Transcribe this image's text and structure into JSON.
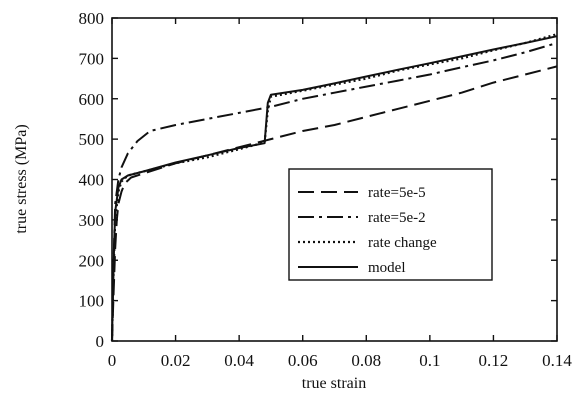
{
  "chart_data": {
    "type": "line",
    "title": "",
    "xlabel": "true strain",
    "ylabel": "true stress (MPa)",
    "xlim": [
      0,
      0.14
    ],
    "ylim": [
      0,
      800
    ],
    "xticks": [
      0,
      0.02,
      0.04,
      0.06,
      0.08,
      0.1,
      0.12,
      0.14
    ],
    "xtick_labels": [
      "0",
      "0.02",
      "0.04",
      "0.06",
      "0.08",
      "0.1",
      "0.12",
      "0.14"
    ],
    "yticks": [
      0,
      100,
      200,
      300,
      400,
      500,
      600,
      700,
      800
    ],
    "ytick_labels": [
      "0",
      "100",
      "200",
      "300",
      "400",
      "500",
      "600",
      "700",
      "800"
    ],
    "grid": false,
    "legend_position": "center-right",
    "series": [
      {
        "name": "rate=5e-5",
        "style": "dashed",
        "color": "#111111",
        "points": [
          [
            0,
            0
          ],
          [
            0.0005,
            120
          ],
          [
            0.001,
            230
          ],
          [
            0.0015,
            300
          ],
          [
            0.002,
            340
          ],
          [
            0.003,
            370
          ],
          [
            0.004,
            390
          ],
          [
            0.006,
            405
          ],
          [
            0.01,
            415
          ],
          [
            0.02,
            440
          ],
          [
            0.03,
            460
          ],
          [
            0.04,
            480
          ],
          [
            0.05,
            500
          ],
          [
            0.06,
            520
          ],
          [
            0.07,
            535
          ],
          [
            0.08,
            555
          ],
          [
            0.09,
            575
          ],
          [
            0.1,
            595
          ],
          [
            0.11,
            615
          ],
          [
            0.12,
            640
          ],
          [
            0.13,
            660
          ],
          [
            0.14,
            680
          ]
        ]
      },
      {
        "name": "rate=5e-2",
        "style": "dash-dot",
        "color": "#111111",
        "points": [
          [
            0,
            0
          ],
          [
            0.0005,
            200
          ],
          [
            0.001,
            340
          ],
          [
            0.002,
            400
          ],
          [
            0.003,
            430
          ],
          [
            0.005,
            465
          ],
          [
            0.008,
            495
          ],
          [
            0.012,
            520
          ],
          [
            0.02,
            535
          ],
          [
            0.03,
            550
          ],
          [
            0.04,
            565
          ],
          [
            0.05,
            580
          ],
          [
            0.06,
            600
          ],
          [
            0.07,
            615
          ],
          [
            0.08,
            630
          ],
          [
            0.09,
            645
          ],
          [
            0.1,
            660
          ],
          [
            0.11,
            678
          ],
          [
            0.12,
            695
          ],
          [
            0.13,
            715
          ],
          [
            0.14,
            738
          ]
        ]
      },
      {
        "name": "rate change",
        "style": "dotted",
        "color": "#111111",
        "points": [
          [
            0,
            0
          ],
          [
            0.0005,
            170
          ],
          [
            0.001,
            300
          ],
          [
            0.002,
            370
          ],
          [
            0.003,
            395
          ],
          [
            0.005,
            410
          ],
          [
            0.01,
            420
          ],
          [
            0.02,
            440
          ],
          [
            0.03,
            455
          ],
          [
            0.04,
            475
          ],
          [
            0.048,
            492
          ],
          [
            0.049,
            570
          ],
          [
            0.05,
            605
          ],
          [
            0.06,
            620
          ],
          [
            0.07,
            635
          ],
          [
            0.08,
            650
          ],
          [
            0.09,
            670
          ],
          [
            0.1,
            685
          ],
          [
            0.11,
            700
          ],
          [
            0.12,
            720
          ],
          [
            0.13,
            738
          ],
          [
            0.14,
            760
          ]
        ]
      },
      {
        "name": "model",
        "style": "solid",
        "color": "#111111",
        "points": [
          [
            0,
            0
          ],
          [
            0.0005,
            200
          ],
          [
            0.001,
            320
          ],
          [
            0.002,
            380
          ],
          [
            0.003,
            400
          ],
          [
            0.005,
            410
          ],
          [
            0.01,
            420
          ],
          [
            0.02,
            442
          ],
          [
            0.03,
            460
          ],
          [
            0.04,
            478
          ],
          [
            0.048,
            490
          ],
          [
            0.0485,
            540
          ],
          [
            0.049,
            590
          ],
          [
            0.05,
            610
          ],
          [
            0.06,
            622
          ],
          [
            0.07,
            638
          ],
          [
            0.08,
            655
          ],
          [
            0.09,
            672
          ],
          [
            0.1,
            688
          ],
          [
            0.11,
            705
          ],
          [
            0.12,
            722
          ],
          [
            0.13,
            738
          ],
          [
            0.14,
            755
          ]
        ]
      }
    ]
  }
}
